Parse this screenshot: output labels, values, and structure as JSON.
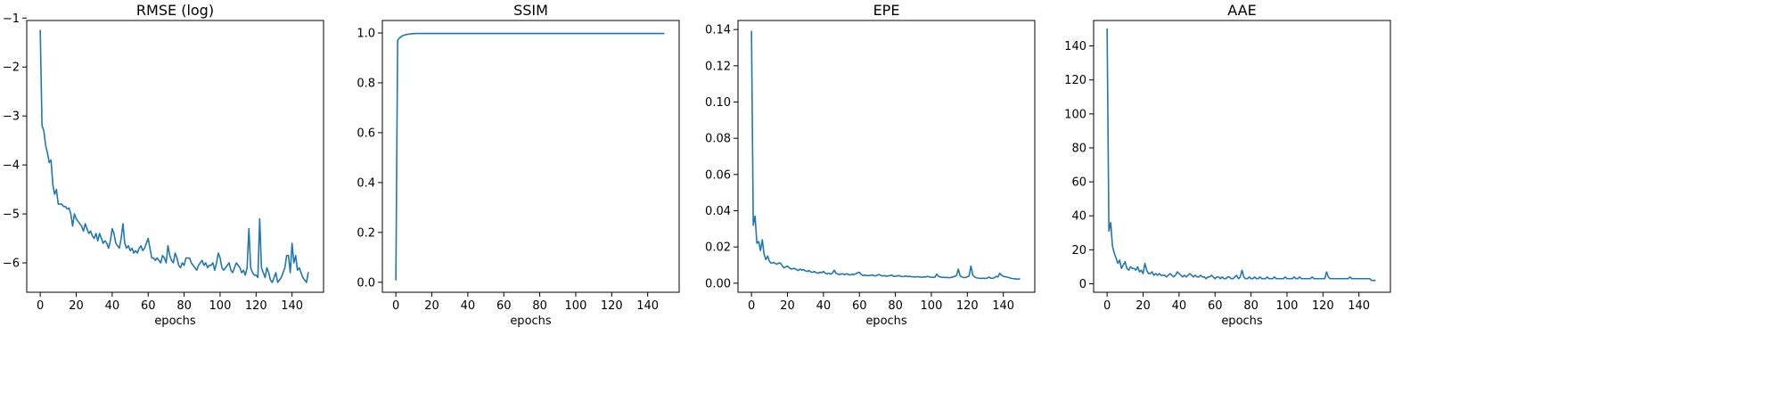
{
  "chart_data": [
    {
      "type": "line",
      "title": "RMSE (log)",
      "xlabel": "epochs",
      "ylabel": "",
      "xlim": [
        -7.5,
        157.5
      ],
      "ylim": [
        -6.6,
        -1.05
      ],
      "xticks": [
        0,
        20,
        40,
        60,
        80,
        100,
        120,
        140
      ],
      "xtick_labels": [
        "0",
        "20",
        "40",
        "60",
        "80",
        "100",
        "120",
        "140"
      ],
      "yticks": [
        -1,
        -2,
        -3,
        -4,
        -5,
        -6
      ],
      "ytick_labels": [
        "−1",
        "−2",
        "−3",
        "−4",
        "−5",
        "−6"
      ],
      "grid": false,
      "color": "#1f77b4",
      "series": [
        {
          "x_start": 0,
          "x_step": 1,
          "values": [
            -1.25,
            -3.2,
            -3.3,
            -3.6,
            -3.75,
            -3.95,
            -3.9,
            -4.4,
            -4.6,
            -4.5,
            -4.8,
            -4.8,
            -4.8,
            -4.85,
            -4.85,
            -4.9,
            -4.88,
            -5.0,
            -5.25,
            -5.0,
            -5.1,
            -5.15,
            -5.2,
            -5.25,
            -5.35,
            -5.2,
            -5.3,
            -5.4,
            -5.35,
            -5.45,
            -5.5,
            -5.4,
            -5.55,
            -5.4,
            -5.5,
            -5.6,
            -5.55,
            -5.6,
            -5.7,
            -5.55,
            -5.3,
            -5.4,
            -5.6,
            -5.65,
            -5.7,
            -5.5,
            -5.2,
            -5.6,
            -5.7,
            -5.65,
            -5.75,
            -5.7,
            -5.8,
            -5.75,
            -5.8,
            -5.7,
            -5.65,
            -5.75,
            -5.7,
            -5.6,
            -5.5,
            -5.7,
            -5.9,
            -5.9,
            -5.95,
            -5.9,
            -5.95,
            -6.0,
            -5.85,
            -5.9,
            -6.0,
            -5.65,
            -5.85,
            -5.95,
            -6.0,
            -5.8,
            -5.9,
            -6.05,
            -6.1,
            -6.0,
            -6.05,
            -5.9,
            -5.9,
            -5.9,
            -6.0,
            -6.05,
            -6.1,
            -6.15,
            -6.05,
            -6.0,
            -5.95,
            -6.05,
            -6.0,
            -6.1,
            -6.05,
            -6.05,
            -6.0,
            -6.15,
            -6.0,
            -5.8,
            -5.9,
            -6.1,
            -6.15,
            -6.1,
            -6.05,
            -6.0,
            -6.15,
            -6.2,
            -6.1,
            -6.0,
            -6.05,
            -6.1,
            -6.2,
            -6.15,
            -6.25,
            -6.1,
            -5.3,
            -6.1,
            -6.2,
            -6.25,
            -6.25,
            -6.3,
            -5.1,
            -6.1,
            -6.2,
            -6.3,
            -6.1,
            -6.2,
            -6.35,
            -6.4,
            -6.3,
            -6.2,
            -6.4,
            -6.35,
            -6.3,
            -6.2,
            -6.1,
            -5.85,
            -5.85,
            -6.2,
            -5.6,
            -6.0,
            -5.85,
            -6.15,
            -6.1,
            -6.2,
            -6.3,
            -6.35,
            -6.4,
            -6.2
          ]
        }
      ]
    },
    {
      "type": "line",
      "title": "SSIM",
      "xlabel": "epochs",
      "ylabel": "",
      "xlim": [
        -7.5,
        157.5
      ],
      "ylim": [
        -0.04,
        1.05
      ],
      "xticks": [
        0,
        20,
        40,
        60,
        80,
        100,
        120,
        140
      ],
      "xtick_labels": [
        "0",
        "20",
        "40",
        "60",
        "80",
        "100",
        "120",
        "140"
      ],
      "yticks": [
        0.0,
        0.2,
        0.4,
        0.6,
        0.8,
        1.0
      ],
      "ytick_labels": [
        "0.0",
        "0.2",
        "0.4",
        "0.6",
        "0.8",
        "1.0"
      ],
      "grid": false,
      "color": "#1f77b4",
      "series": [
        {
          "x_start": 0,
          "x_step": 1,
          "values": [
            0.01,
            0.97,
            0.98,
            0.985,
            0.99,
            0.992,
            0.994,
            0.995,
            0.996,
            0.997,
            0.997,
            0.998,
            0.998,
            0.998,
            0.998,
            0.998,
            0.998,
            0.998,
            0.998,
            0.998,
            0.998,
            0.998,
            0.998,
            0.998,
            0.998,
            0.998,
            0.998,
            0.998,
            0.998,
            0.998,
            0.998,
            0.998,
            0.998,
            0.998,
            0.998,
            0.998,
            0.998,
            0.998,
            0.998,
            0.998,
            0.998,
            0.998,
            0.998,
            0.998,
            0.998,
            0.998,
            0.998,
            0.998,
            0.998,
            0.998,
            0.998,
            0.998,
            0.998,
            0.998,
            0.998,
            0.998,
            0.998,
            0.998,
            0.998,
            0.998,
            0.998,
            0.998,
            0.998,
            0.998,
            0.998,
            0.998,
            0.998,
            0.998,
            0.998,
            0.998,
            0.998,
            0.998,
            0.998,
            0.998,
            0.998,
            0.998,
            0.998,
            0.998,
            0.998,
            0.998,
            0.998,
            0.998,
            0.998,
            0.998,
            0.998,
            0.998,
            0.998,
            0.998,
            0.998,
            0.998,
            0.998,
            0.998,
            0.998,
            0.998,
            0.998,
            0.998,
            0.998,
            0.998,
            0.998,
            0.998,
            0.998,
            0.998,
            0.998,
            0.998,
            0.998,
            0.998,
            0.998,
            0.998,
            0.998,
            0.998,
            0.998,
            0.998,
            0.998,
            0.998,
            0.998,
            0.998,
            0.998,
            0.998,
            0.998,
            0.998,
            0.998,
            0.998,
            0.998,
            0.998,
            0.998,
            0.998,
            0.998,
            0.998,
            0.998,
            0.998,
            0.998,
            0.998,
            0.998,
            0.998,
            0.998,
            0.998,
            0.998,
            0.998,
            0.998,
            0.998,
            0.998,
            0.998,
            0.998,
            0.998,
            0.998,
            0.998,
            0.998,
            0.998,
            0.998,
            0.998
          ]
        }
      ]
    },
    {
      "type": "line",
      "title": "EPE",
      "xlabel": "epochs",
      "ylabel": "",
      "xlim": [
        -7.5,
        157.5
      ],
      "ylim": [
        -0.005,
        0.145
      ],
      "xticks": [
        0,
        20,
        40,
        60,
        80,
        100,
        120,
        140
      ],
      "xtick_labels": [
        "0",
        "20",
        "40",
        "60",
        "80",
        "100",
        "120",
        "140"
      ],
      "yticks": [
        0.0,
        0.02,
        0.04,
        0.06,
        0.08,
        0.1,
        0.12,
        0.14
      ],
      "ytick_labels": [
        "0.00",
        "0.02",
        "0.04",
        "0.06",
        "0.08",
        "0.10",
        "0.12",
        "0.14"
      ],
      "grid": false,
      "color": "#1f77b4",
      "series": [
        {
          "x_start": 0,
          "x_step": 1,
          "values": [
            0.139,
            0.032,
            0.037,
            0.022,
            0.023,
            0.018,
            0.024,
            0.016,
            0.013,
            0.015,
            0.012,
            0.011,
            0.0115,
            0.011,
            0.0105,
            0.011,
            0.0112,
            0.0098,
            0.0085,
            0.009,
            0.0095,
            0.0085,
            0.0078,
            0.008,
            0.0082,
            0.0075,
            0.007,
            0.0078,
            0.0072,
            0.0075,
            0.0068,
            0.0065,
            0.007,
            0.0062,
            0.006,
            0.0065,
            0.0058,
            0.0055,
            0.006,
            0.0058,
            0.0065,
            0.0055,
            0.0052,
            0.0055,
            0.005,
            0.0055,
            0.0072,
            0.0055,
            0.005,
            0.0048,
            0.0052,
            0.005,
            0.0048,
            0.0052,
            0.0048,
            0.0045,
            0.005,
            0.0048,
            0.0052,
            0.0058,
            0.006,
            0.0048,
            0.0042,
            0.0045,
            0.0042,
            0.0042,
            0.0043,
            0.0045,
            0.0042,
            0.004,
            0.0045,
            0.0048,
            0.0042,
            0.004,
            0.0042,
            0.0038,
            0.004,
            0.0042,
            0.0045,
            0.0038,
            0.0038,
            0.004,
            0.0042,
            0.0038,
            0.0036,
            0.0038,
            0.004,
            0.0036,
            0.0038,
            0.0035,
            0.0036,
            0.0034,
            0.0036,
            0.0035,
            0.0034,
            0.0033,
            0.0035,
            0.0034,
            0.0038,
            0.0034,
            0.0033,
            0.0032,
            0.0034,
            0.005,
            0.0038,
            0.0034,
            0.0032,
            0.0033,
            0.0031,
            0.0032,
            0.003,
            0.0032,
            0.0034,
            0.0038,
            0.0042,
            0.0078,
            0.004,
            0.0034,
            0.0031,
            0.0032,
            0.0035,
            0.004,
            0.0095,
            0.0045,
            0.0035,
            0.003,
            0.0028,
            0.0027,
            0.0026,
            0.0028,
            0.0026,
            0.0028,
            0.0034,
            0.0028,
            0.0027,
            0.003,
            0.0038,
            0.0034,
            0.0055,
            0.0045,
            0.0038,
            0.0036,
            0.0034,
            0.0031,
            0.0028,
            0.0026,
            0.0025,
            0.0024,
            0.0022,
            0.0024
          ]
        }
      ]
    },
    {
      "type": "line",
      "title": "AAE",
      "xlabel": "epochs",
      "ylabel": "",
      "xlim": [
        -7.5,
        157.5
      ],
      "ylim": [
        -5,
        155
      ],
      "xticks": [
        0,
        20,
        40,
        60,
        80,
        100,
        120,
        140
      ],
      "xtick_labels": [
        "0",
        "20",
        "40",
        "60",
        "80",
        "100",
        "120",
        "140"
      ],
      "yticks": [
        0,
        20,
        40,
        60,
        80,
        100,
        120,
        140
      ],
      "ytick_labels": [
        "0",
        "20",
        "40",
        "60",
        "80",
        "100",
        "120",
        "140"
      ],
      "grid": false,
      "color": "#1f77b4",
      "series": [
        {
          "x_start": 0,
          "x_step": 1,
          "values": [
            150,
            31,
            36,
            22,
            18,
            15,
            12,
            14,
            9,
            11,
            13,
            9,
            8,
            10,
            9,
            9,
            8,
            10,
            7,
            8,
            6,
            12,
            8,
            6,
            6,
            7,
            5,
            6,
            5,
            6,
            5,
            5,
            5,
            4,
            5,
            6,
            5,
            4,
            5,
            7,
            6,
            5,
            4,
            5,
            4,
            5,
            6,
            5,
            4,
            5,
            4,
            4,
            5,
            4,
            4,
            3,
            4,
            4,
            5,
            4,
            3,
            4,
            4,
            3,
            4,
            3,
            3,
            4,
            4,
            3,
            3,
            4,
            5,
            3,
            4,
            8,
            4,
            3,
            3,
            4,
            3,
            3,
            4,
            3,
            3,
            4,
            3,
            3,
            3,
            4,
            3,
            3,
            3,
            4,
            3,
            3,
            3,
            3,
            3,
            4,
            3,
            3,
            3,
            3,
            4,
            3,
            3,
            4,
            3,
            3,
            3,
            3,
            3,
            3,
            4,
            3,
            3,
            3,
            3,
            3,
            3,
            3,
            7,
            4,
            3,
            3,
            3,
            3,
            3,
            3,
            3,
            3,
            3,
            3,
            3,
            4,
            3,
            3,
            3,
            3,
            3,
            3,
            3,
            3,
            3,
            3,
            3,
            2,
            2,
            2
          ]
        }
      ]
    }
  ]
}
